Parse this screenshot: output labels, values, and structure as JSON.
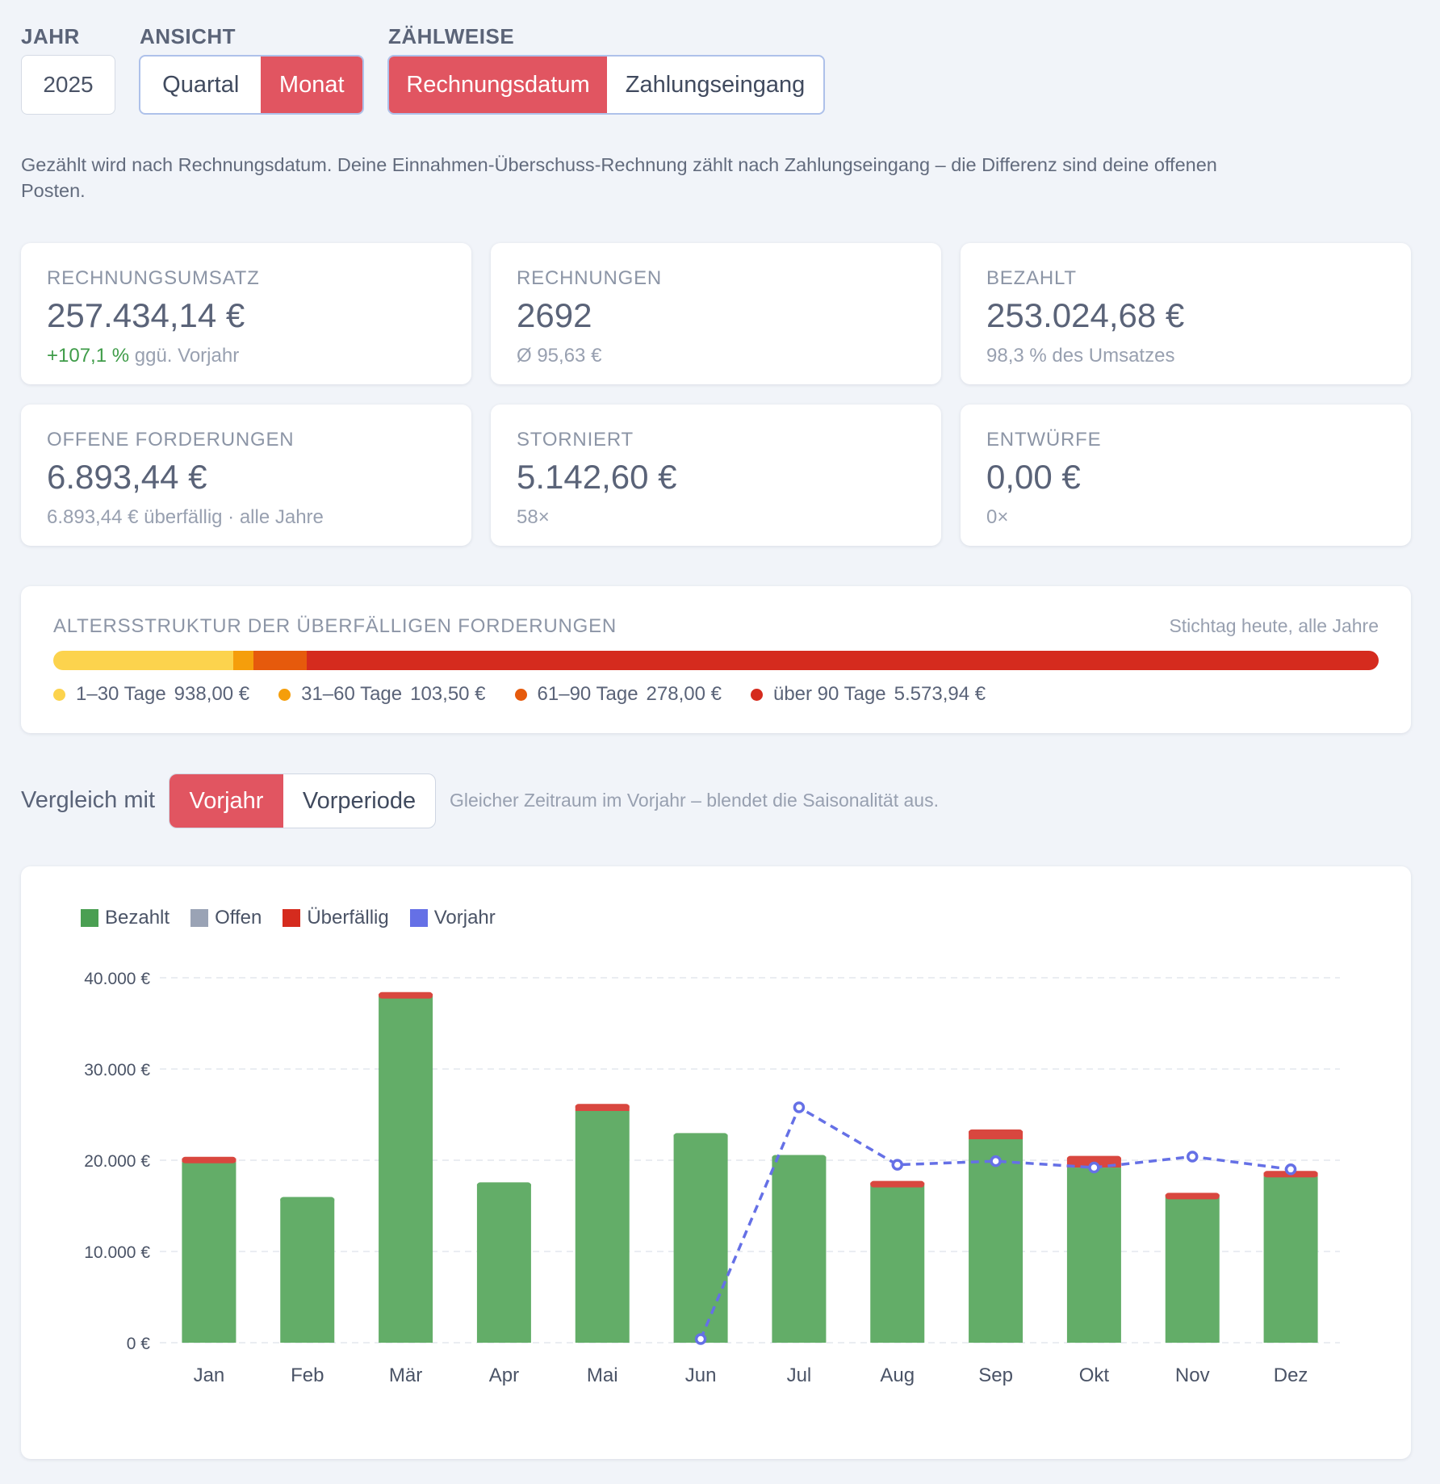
{
  "controls": {
    "year_label": "JAHR",
    "year_value": "2025",
    "view_label": "ANSICHT",
    "view_options": [
      "Quartal",
      "Monat"
    ],
    "count_label": "ZÄHLWEISE",
    "count_options": [
      "Rechnungsdatum",
      "Zahlungseingang"
    ]
  },
  "note": "Gezählt wird nach Rechnungsdatum. Deine Einnahmen-Überschuss-Rechnung zählt nach Zahlungseingang – die Differenz sind deine offenen Posten.",
  "kpis": [
    {
      "label": "RECHNUNGSUMSATZ",
      "value": "257.434,14 €",
      "sub_highlight": "+107,1 %",
      "sub": " ggü. Vorjahr"
    },
    {
      "label": "RECHNUNGEN",
      "value": "2692",
      "sub": "Ø 95,63 €"
    },
    {
      "label": "BEZAHLT",
      "value": "253.024,68 €",
      "sub": "98,3 % des Umsatzes"
    },
    {
      "label": "OFFENE FORDERUNGEN",
      "value": "6.893,44 €",
      "sub": "6.893,44 € überfällig · alle Jahre"
    },
    {
      "label": "STORNIERT",
      "value": "5.142,60 €",
      "sub": "58×"
    },
    {
      "label": "ENTWÜRFE",
      "value": "0,00 €",
      "sub": "0×"
    }
  ],
  "aging": {
    "title": "ALTERSSTRUKTUR DER ÜBERFÄLLIGEN FORDERUNGEN",
    "right": "Stichtag heute, alle Jahre",
    "buckets": [
      {
        "label": "1–30 Tage",
        "amount": "938,00 €",
        "value": 938.0,
        "color": "#fcd34d"
      },
      {
        "label": "31–60 Tage",
        "amount": "103,50 €",
        "value": 103.5,
        "color": "#f59e0b"
      },
      {
        "label": "61–90 Tage",
        "amount": "278,00 €",
        "value": 278.0,
        "color": "#e65a0c"
      },
      {
        "label": "über 90 Tage",
        "amount": "5.573,94 €",
        "value": 5573.94,
        "color": "#d52b1e"
      }
    ]
  },
  "compare": {
    "label": "Vergleich mit",
    "options": [
      "Vorjahr",
      "Vorperiode"
    ],
    "hint": "Gleicher Zeitraum im Vorjahr – blendet die Saisonalität aus."
  },
  "colors": {
    "accent": "#e15561",
    "paid": "#63ad68",
    "open": "#9aa3b5",
    "overdue": "#d9473f",
    "prev_year": "#6570e6"
  },
  "chart_data": {
    "type": "bar",
    "stacked": true,
    "categories": [
      "Jan",
      "Feb",
      "Mär",
      "Apr",
      "Mai",
      "Jun",
      "Jul",
      "Aug",
      "Sep",
      "Okt",
      "Nov",
      "Dez"
    ],
    "series": [
      {
        "name": "Bezahlt",
        "values": [
          19800,
          15800,
          38000,
          17400,
          25400,
          22800,
          20400,
          17400,
          22300,
          19200,
          16100,
          18200
        ]
      },
      {
        "name": "Offen",
        "values": [
          0,
          0,
          0,
          0,
          0,
          0,
          0,
          0,
          0,
          0,
          0,
          0
        ]
      },
      {
        "name": "Überfällig",
        "values": [
          400,
          0,
          250,
          0,
          600,
          0,
          0,
          150,
          900,
          1100,
          150,
          450
        ]
      },
      {
        "name": "Vorjahr",
        "type": "line",
        "values": [
          null,
          null,
          null,
          null,
          null,
          400,
          25800,
          19500,
          19900,
          19200,
          20400,
          19000
        ]
      }
    ],
    "yticks": [
      "0 €",
      "10.000 €",
      "20.000 €",
      "30.000 €",
      "40.000 €"
    ],
    "ylim": [
      0,
      40000
    ],
    "grid": true,
    "legend": "top-left"
  }
}
